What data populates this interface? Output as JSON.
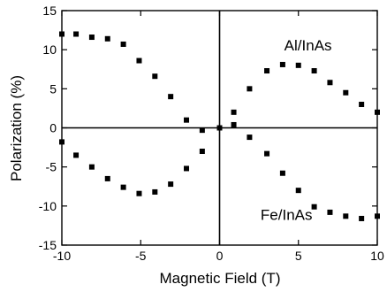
{
  "chart_data": {
    "type": "scatter",
    "title": "",
    "xlabel": "Magnetic Field (T)",
    "ylabel": "Polarization (%)",
    "xlim": [
      -10,
      10
    ],
    "ylim": [
      -15,
      15
    ],
    "x_ticks": [
      -10,
      -5,
      0,
      5,
      10
    ],
    "y_ticks": [
      -15,
      -10,
      -5,
      0,
      5,
      10,
      15
    ],
    "x_tick_labels": [
      "-10",
      "-5",
      "0",
      "5",
      "10"
    ],
    "y_tick_labels": [
      "-15",
      "-10",
      "-5",
      "0",
      "5",
      "10",
      "15"
    ],
    "grid": false,
    "zero_lines": true,
    "marker": "square",
    "marker_color": "#000000",
    "series": [
      {
        "name": "Al/InAs",
        "x": [
          -10,
          -9.1,
          -8.1,
          -7.1,
          -6.1,
          -5.1,
          -4.1,
          -3.1,
          -2.1,
          -1.1,
          0,
          0.9,
          1.9,
          3.0,
          4.0,
          5.0,
          6.0,
          7.0,
          8.0,
          9.0,
          10.0
        ],
        "y": [
          -1.8,
          -3.5,
          -5.0,
          -6.5,
          -7.6,
          -8.4,
          -8.2,
          -7.2,
          -5.2,
          -3.0,
          0,
          2.0,
          5.0,
          7.3,
          8.1,
          8.0,
          7.3,
          5.8,
          4.5,
          3.0,
          2.0
        ]
      },
      {
        "name": "Fe/InAs",
        "x": [
          -10,
          -9.1,
          -8.1,
          -7.1,
          -6.1,
          -5.1,
          -4.1,
          -3.1,
          -2.1,
          -1.1,
          0,
          0.9,
          1.9,
          3.0,
          4.0,
          5.0,
          6.0,
          7.0,
          8.0,
          9.0,
          10.0
        ],
        "y": [
          12.0,
          12.0,
          11.6,
          11.4,
          10.7,
          8.6,
          6.6,
          4.0,
          1.0,
          -0.3,
          0,
          0.4,
          -1.2,
          -3.3,
          -5.8,
          -8.0,
          -10.1,
          -10.8,
          -11.3,
          -11.6,
          -11.3
        ]
      }
    ],
    "annotations": [
      {
        "text": "Al/InAs",
        "x": 4.1,
        "y": 9.9
      },
      {
        "text": "Fe/InAs",
        "x": 2.6,
        "y": -11.8
      }
    ]
  }
}
